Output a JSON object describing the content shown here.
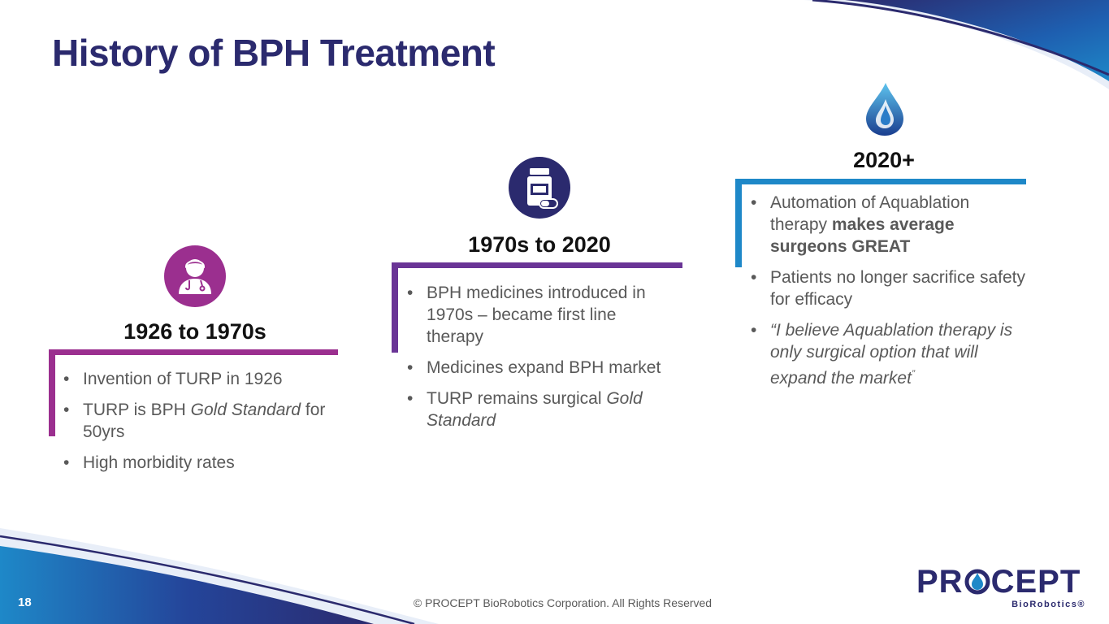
{
  "slide": {
    "title": "History of BPH Treatment",
    "page_number": "18",
    "copyright": "© PROCEPT BioRobotics Corporation. All Rights Reserved"
  },
  "colors": {
    "title": "#2b2a6e",
    "magenta": "#9b2f8f",
    "purple": "#6a3596",
    "blue": "#1e88c8",
    "navy": "#2b2a6e"
  },
  "columns": [
    {
      "heading": "1926 to 1970s",
      "icon": "doctor-icon",
      "bullets": [
        {
          "parts": [
            {
              "text": "Invention of TURP in 1926",
              "style": "normal"
            }
          ]
        },
        {
          "parts": [
            {
              "text": "TURP is BPH ",
              "style": "normal"
            },
            {
              "text": "Gold Standard",
              "style": "italic"
            },
            {
              "text": " for 50yrs",
              "style": "normal"
            }
          ]
        },
        {
          "parts": [
            {
              "text": "High morbidity rates",
              "style": "normal"
            }
          ]
        }
      ]
    },
    {
      "heading": "1970s to 2020",
      "icon": "medicine-bottle-icon",
      "bullets": [
        {
          "parts": [
            {
              "text": "BPH medicines introduced in 1970s – became first line therapy",
              "style": "normal"
            }
          ]
        },
        {
          "parts": [
            {
              "text": "Medicines expand BPH market",
              "style": "normal"
            }
          ]
        },
        {
          "parts": [
            {
              "text": "TURP remains surgical ",
              "style": "normal"
            },
            {
              "text": "Gold Standard",
              "style": "italic"
            }
          ]
        }
      ]
    },
    {
      "heading": "2020+",
      "icon": "water-drop-icon",
      "bullets": [
        {
          "parts": [
            {
              "text": "Automation of Aquablation therapy ",
              "style": "normal"
            },
            {
              "text": "makes average surgeons GREAT",
              "style": "bold"
            }
          ]
        },
        {
          "parts": [
            {
              "text": "Patients no longer sacrifice safety for efficacy",
              "style": "normal"
            }
          ]
        },
        {
          "parts": [
            {
              "text": "“I believe Aquablation therapy is only surgical option that will expand the market",
              "style": "italic"
            },
            {
              "text": "”",
              "style": "italic-sup"
            }
          ]
        }
      ]
    }
  ],
  "logo": {
    "word_left": "PR",
    "word_right": "CEPT",
    "subtitle": "BioRobotics®"
  }
}
